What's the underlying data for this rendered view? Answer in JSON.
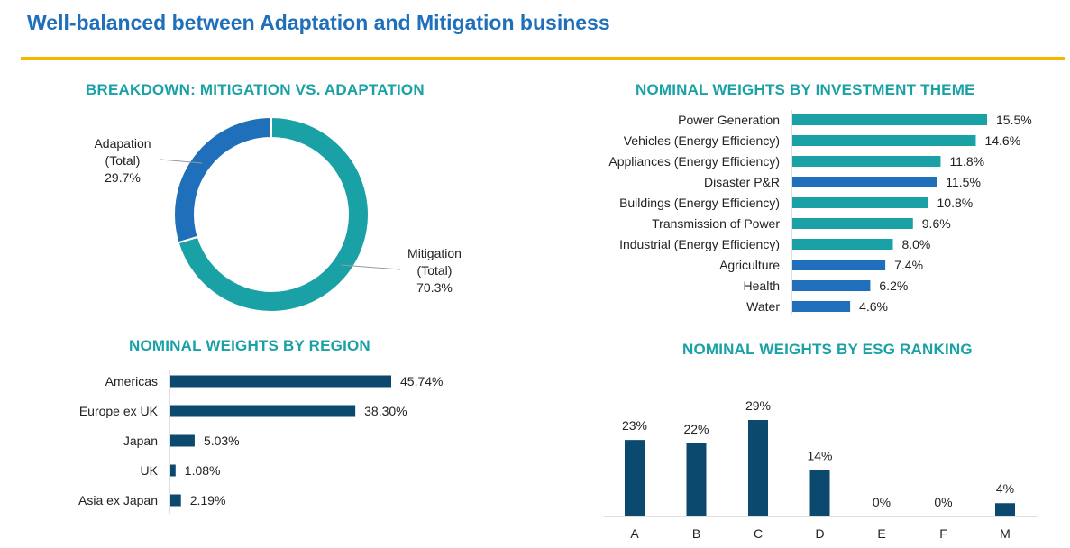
{
  "page": {
    "title": "Well-balanced between Adaptation and Mitigation business"
  },
  "colors": {
    "title": "#1f6fba",
    "rule": "#f5b800",
    "section_title": "#1aa1a6",
    "teal": "#1aa1a6",
    "blue": "#1f6fba",
    "navy": "#0b4a6e"
  },
  "chart_data": [
    {
      "id": "donut",
      "type": "pie",
      "title": "BREAKDOWN: MITIGATION VS. ADAPTATION",
      "slices": [
        {
          "name_lines": [
            "Adapation",
            "(Total)"
          ],
          "value": 29.7,
          "label": "29.7%",
          "color": "#1f6fba"
        },
        {
          "name_lines": [
            "Mitigation",
            "(Total)"
          ],
          "value": 70.3,
          "label": "70.3%",
          "color": "#1aa1a6"
        }
      ]
    },
    {
      "id": "theme",
      "type": "bar",
      "orientation": "horizontal",
      "title": "NOMINAL WEIGHTS BY INVESTMENT THEME",
      "categories": [
        "Power Generation",
        "Vehicles (Energy Efficiency)",
        "Appliances (Energy Efficiency)",
        "Disaster P&R",
        "Buildings (Energy Efficiency)",
        "Transmission of Power",
        "Industrial (Energy Efficiency)",
        "Agriculture",
        "Health",
        "Water"
      ],
      "values": [
        15.5,
        14.6,
        11.8,
        11.5,
        10.8,
        9.6,
        8.0,
        7.4,
        6.2,
        4.6
      ],
      "labels": [
        "15.5%",
        "14.6%",
        "11.8%",
        "11.5%",
        "10.8%",
        "9.6%",
        "8.0%",
        "7.4%",
        "6.2%",
        "4.6%"
      ],
      "colors": [
        "#1aa1a6",
        "#1aa1a6",
        "#1aa1a6",
        "#1f6fba",
        "#1aa1a6",
        "#1aa1a6",
        "#1aa1a6",
        "#1f6fba",
        "#1f6fba",
        "#1f6fba"
      ],
      "xlim": [
        0,
        15.5
      ]
    },
    {
      "id": "region",
      "type": "bar",
      "orientation": "horizontal",
      "title": "NOMINAL WEIGHTS BY REGION",
      "categories": [
        "Americas",
        "Europe ex UK",
        "Japan",
        "UK",
        "Asia ex Japan"
      ],
      "values": [
        45.74,
        38.3,
        5.03,
        1.08,
        2.19
      ],
      "labels": [
        "45.74%",
        "38.30%",
        "5.03%",
        "1.08%",
        "2.19%"
      ],
      "color": "#0b4a6e",
      "xlim": [
        0,
        45.74
      ]
    },
    {
      "id": "esg",
      "type": "bar",
      "orientation": "vertical",
      "title": "NOMINAL WEIGHTS BY ESG RANKING",
      "categories": [
        "A",
        "B",
        "C",
        "D",
        "E",
        "F",
        "M"
      ],
      "values": [
        23,
        22,
        29,
        14,
        0,
        0,
        4
      ],
      "labels": [
        "23%",
        "22%",
        "29%",
        "14%",
        "0%",
        "0%",
        "4%"
      ],
      "color": "#0b4a6e",
      "ylim": [
        0,
        29
      ]
    }
  ]
}
